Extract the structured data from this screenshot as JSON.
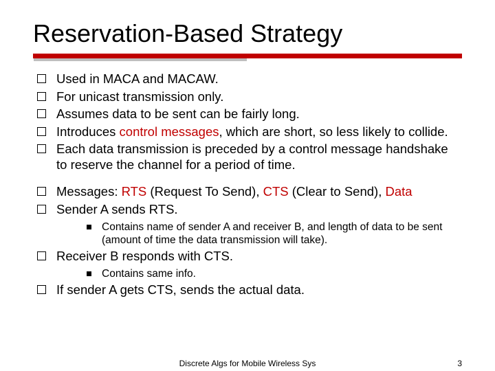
{
  "title": "Reservation-Based Strategy",
  "colors": {
    "accent": "#c00000",
    "text": "#000000",
    "background": "#ffffff",
    "rule_shadow": "#888888"
  },
  "typography": {
    "title_fontsize": 36,
    "body_fontsize": 18.5,
    "sub_fontsize": 15.5,
    "footer_fontsize": 12,
    "font_family": "Arial"
  },
  "bullets_group1": [
    {
      "plain": "Used in MACA and MACAW."
    },
    {
      "plain": "For unicast transmission only."
    },
    {
      "plain": "Assumes data to be sent can be fairly long."
    },
    {
      "pre": "Introduces ",
      "kw": "control messages",
      "post": ", which are short, so less likely to collide."
    },
    {
      "plain": "Each data transmission is preceded by a control message handshake to reserve the channel for a period of time."
    }
  ],
  "bullets_group2": [
    {
      "pre": "Messages:  ",
      "kw1": "RTS",
      "mid1": " (Request To Send), ",
      "kw2": "CTS",
      "mid2": " (Clear to Send), ",
      "kw3": "Data"
    },
    {
      "plain": "Sender A sends RTS.",
      "sub": [
        "Contains name of sender A and receiver B, and length of data to be sent (amount of time the data transmission will take)."
      ]
    },
    {
      "plain": "Receiver B responds with CTS.",
      "sub": [
        "Contains same info."
      ]
    },
    {
      "plain": "If sender A gets CTS, sends the actual data."
    }
  ],
  "footer": {
    "center": "Discrete Algs for Mobile Wireless Sys",
    "page": "3"
  }
}
